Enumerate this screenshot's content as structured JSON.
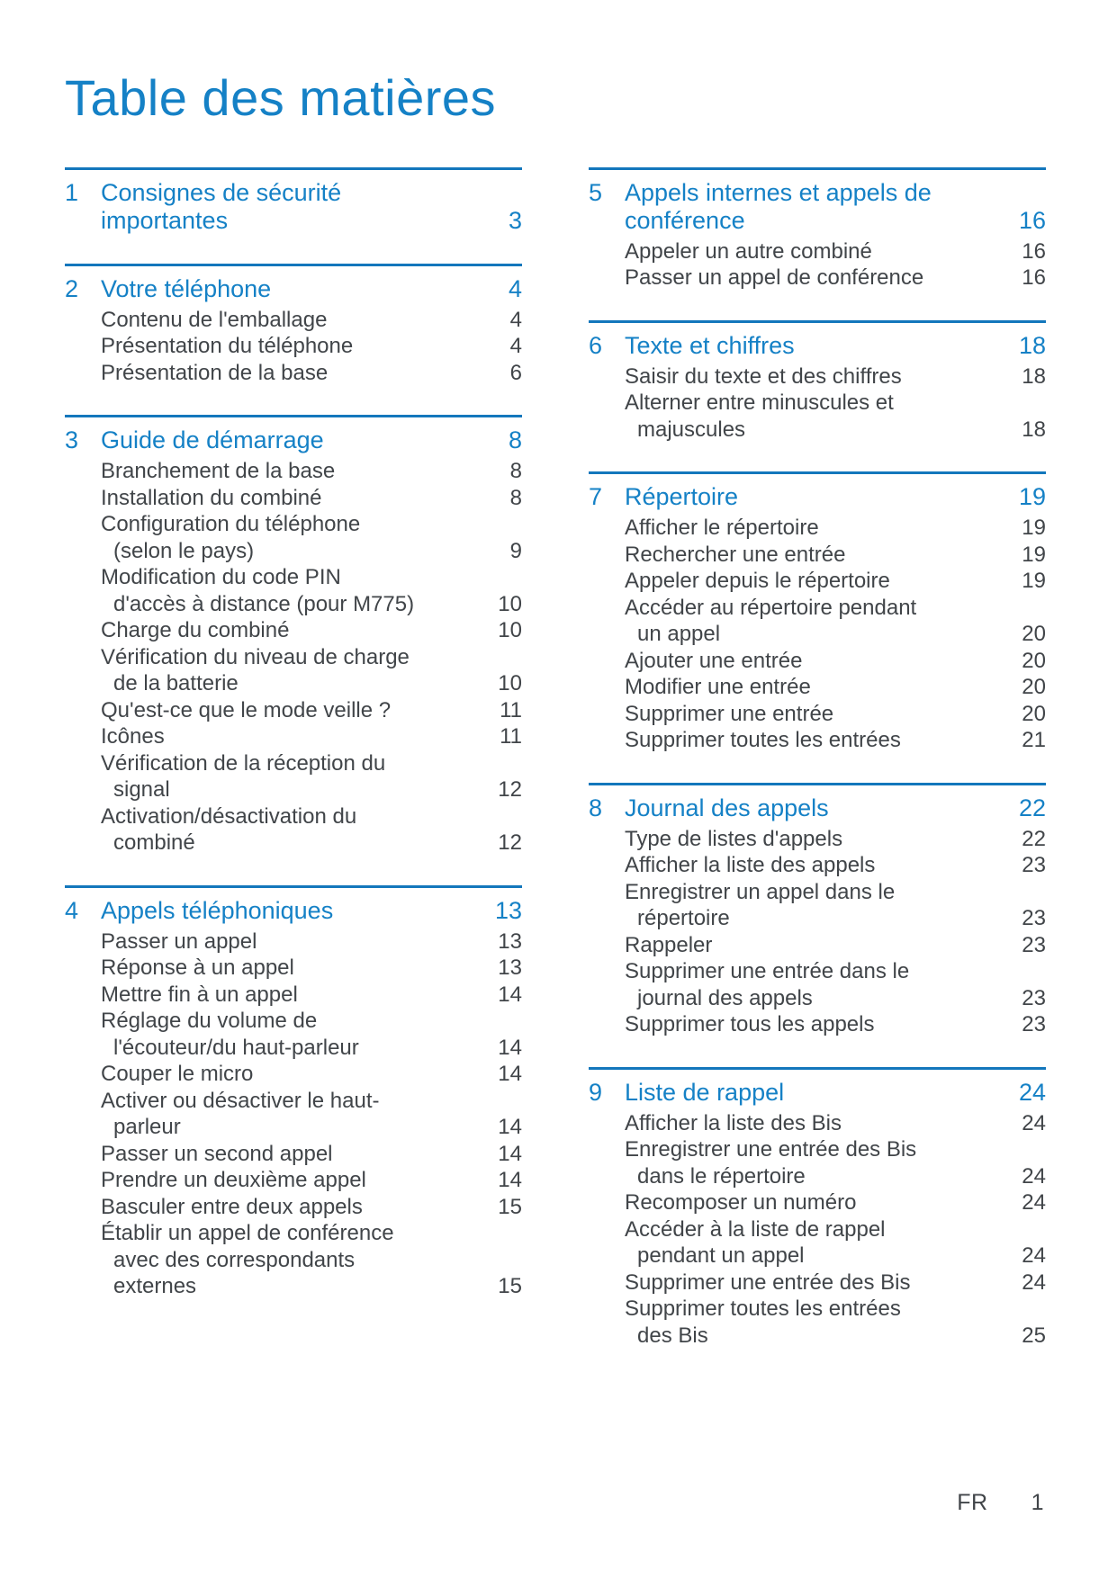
{
  "page": {
    "title": "Table des matières",
    "footer": {
      "lang": "FR",
      "page_number": "1"
    }
  },
  "colors": {
    "heading_blue": "#1581c6",
    "rule_blue": "#1377bc",
    "body_text": "#414549"
  },
  "toc": {
    "columns": [
      {
        "sections": [
          {
            "number": "1",
            "title": "Consignes de sécurité\nimportantes",
            "page": "3",
            "entries": []
          },
          {
            "number": "2",
            "title": "Votre téléphone",
            "page": "4",
            "entries": [
              {
                "label": "Contenu de l'emballage",
                "page": "4"
              },
              {
                "label": "Présentation du téléphone",
                "page": "4"
              },
              {
                "label": "Présentation de la base",
                "page": "6"
              }
            ]
          },
          {
            "number": "3",
            "title": "Guide de démarrage",
            "page": "8",
            "entries": [
              {
                "label": "Branchement de la base",
                "page": "8"
              },
              {
                "label": "Installation du combiné",
                "page": "8"
              },
              {
                "label": "Configuration du téléphone\n(selon le pays)",
                "page": "9"
              },
              {
                "label": "Modification du code PIN\nd'accès à distance (pour M775)",
                "page": "10"
              },
              {
                "label": "Charge du combiné",
                "page": "10"
              },
              {
                "label": "Vérification du niveau de charge\nde la batterie",
                "page": "10"
              },
              {
                "label": "Qu'est-ce que le mode veille ?",
                "page": "11"
              },
              {
                "label": "Icônes",
                "page": "11"
              },
              {
                "label": "Vérification de la réception du\nsignal",
                "page": "12"
              },
              {
                "label": "Activation/désactivation du\ncombiné",
                "page": "12"
              }
            ]
          },
          {
            "number": "4",
            "title": "Appels téléphoniques",
            "page": "13",
            "entries": [
              {
                "label": "Passer un appel",
                "page": "13"
              },
              {
                "label": "Réponse à un appel",
                "page": "13"
              },
              {
                "label": "Mettre fin à un appel",
                "page": "14"
              },
              {
                "label": "Réglage du volume de\nl'écouteur/du haut-parleur",
                "page": "14"
              },
              {
                "label": "Couper le micro",
                "page": "14"
              },
              {
                "label": "Activer ou désactiver le haut-\nparleur",
                "page": "14"
              },
              {
                "label": "Passer un second appel",
                "page": "14"
              },
              {
                "label": "Prendre un deuxième appel",
                "page": "14"
              },
              {
                "label": "Basculer entre deux appels",
                "page": "15"
              },
              {
                "label": "Établir un appel de conférence\navec des correspondants\nexternes",
                "page": "15"
              }
            ]
          }
        ]
      },
      {
        "sections": [
          {
            "number": "5",
            "title": "Appels internes et appels de\nconférence",
            "page": "16",
            "entries": [
              {
                "label": "Appeler un autre combiné",
                "page": "16"
              },
              {
                "label": "Passer un appel de conférence",
                "page": "16"
              }
            ]
          },
          {
            "number": "6",
            "title": "Texte et chiffres",
            "page": "18",
            "entries": [
              {
                "label": "Saisir du texte et des chiffres",
                "page": "18"
              },
              {
                "label": "Alterner entre minuscules et\nmajuscules",
                "page": "18"
              }
            ]
          },
          {
            "number": "7",
            "title": "Répertoire",
            "page": "19",
            "entries": [
              {
                "label": "Afficher le répertoire",
                "page": "19"
              },
              {
                "label": "Rechercher une entrée",
                "page": "19"
              },
              {
                "label": "Appeler depuis le répertoire",
                "page": "19"
              },
              {
                "label": "Accéder au répertoire pendant\nun appel",
                "page": "20"
              },
              {
                "label": "Ajouter une entrée",
                "page": "20"
              },
              {
                "label": "Modifier une entrée",
                "page": "20"
              },
              {
                "label": "Supprimer une entrée",
                "page": "20"
              },
              {
                "label": "Supprimer toutes les entrées",
                "page": "21"
              }
            ]
          },
          {
            "number": "8",
            "title": "Journal des appels",
            "page": "22",
            "entries": [
              {
                "label": "Type de listes d'appels",
                "page": "22"
              },
              {
                "label": "Afficher la liste des appels",
                "page": "23"
              },
              {
                "label": "Enregistrer un appel dans le\nrépertoire",
                "page": "23"
              },
              {
                "label": "Rappeler",
                "page": "23"
              },
              {
                "label": "Supprimer une entrée dans le\njournal des appels",
                "page": "23"
              },
              {
                "label": "Supprimer tous les appels",
                "page": "23"
              }
            ]
          },
          {
            "number": "9",
            "title": "Liste de rappel",
            "page": "24",
            "entries": [
              {
                "label": "Afficher la liste des Bis",
                "page": "24"
              },
              {
                "label": "Enregistrer une entrée des Bis\ndans le répertoire",
                "page": "24"
              },
              {
                "label": "Recomposer un numéro",
                "page": "24"
              },
              {
                "label": "Accéder à la liste de rappel\npendant un appel",
                "page": "24"
              },
              {
                "label": "Supprimer une entrée des Bis",
                "page": "24"
              },
              {
                "label": "Supprimer toutes les entrées\ndes Bis",
                "page": "25"
              }
            ]
          }
        ]
      }
    ]
  }
}
